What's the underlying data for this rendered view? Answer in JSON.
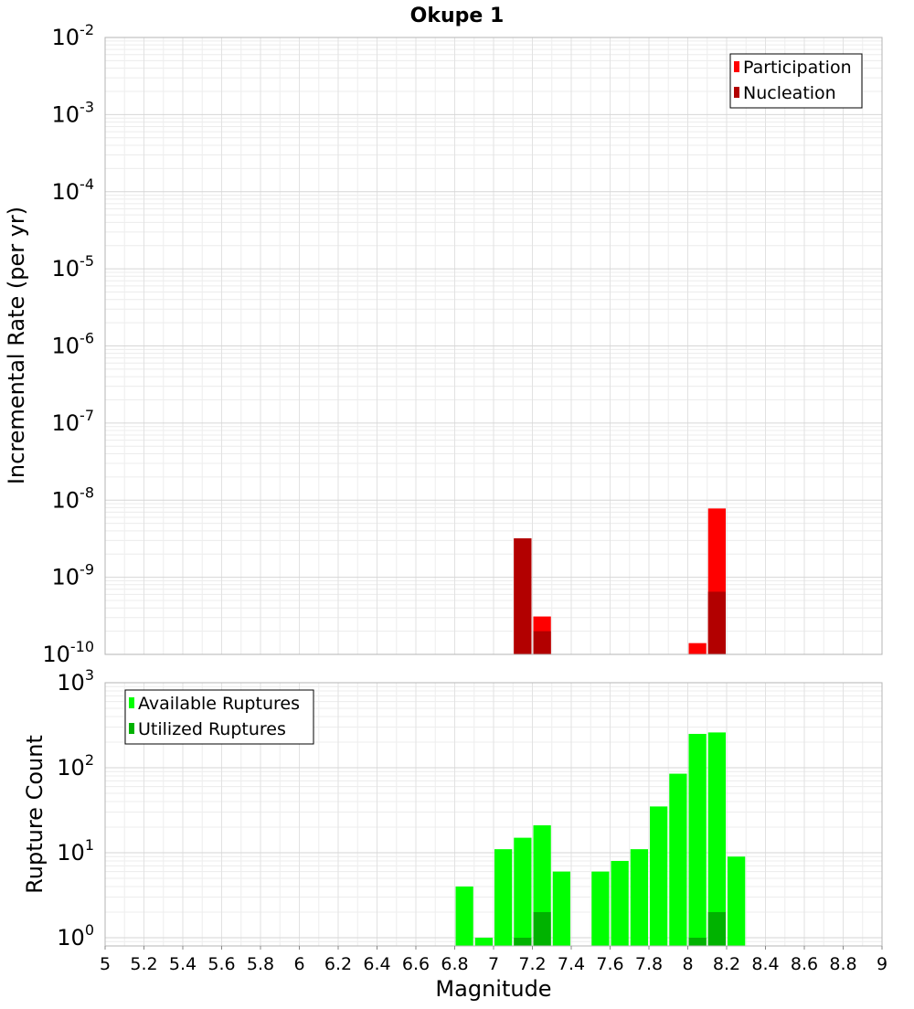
{
  "title": "Okupe 1",
  "chart_data": [
    {
      "type": "bar",
      "panel": "top",
      "ylabel": "Incremental Rate (per yr)",
      "yscale": "log",
      "ylim": [
        1e-10,
        0.01
      ],
      "xlim": [
        5,
        9
      ],
      "y_ticks": [
        {
          "base": "10",
          "exp": "-10",
          "value": 1e-10
        },
        {
          "base": "10",
          "exp": "-9",
          "value": 1e-09
        },
        {
          "base": "10",
          "exp": "-8",
          "value": 1e-08
        },
        {
          "base": "10",
          "exp": "-7",
          "value": 1e-07
        },
        {
          "base": "10",
          "exp": "-6",
          "value": 1e-06
        },
        {
          "base": "10",
          "exp": "-5",
          "value": 1e-05
        },
        {
          "base": "10",
          "exp": "-4",
          "value": 0.0001
        },
        {
          "base": "10",
          "exp": "-3",
          "value": 0.001
        },
        {
          "base": "10",
          "exp": "-2",
          "value": 0.01
        }
      ],
      "legend_position": "top-right",
      "bin_width": 0.1,
      "series": [
        {
          "name": "Participation",
          "color": "#ff0000",
          "points": [
            {
              "x": 7.15,
              "y": 3.2e-09
            },
            {
              "x": 7.25,
              "y": 3.1e-10
            },
            {
              "x": 8.05,
              "y": 1.4e-10
            },
            {
              "x": 8.15,
              "y": 7.8e-09
            }
          ]
        },
        {
          "name": "Nucleation",
          "color": "#b20000",
          "points": [
            {
              "x": 7.15,
              "y": 3.2e-09
            },
            {
              "x": 7.25,
              "y": 2e-10
            },
            {
              "x": 8.15,
              "y": 6.5e-10
            }
          ]
        }
      ]
    },
    {
      "type": "bar",
      "panel": "bottom",
      "ylabel": "Rupture Count",
      "xlabel": "Magnitude",
      "yscale": "log",
      "ylim": [
        0.8,
        1000
      ],
      "xlim": [
        5,
        9
      ],
      "y_ticks": [
        {
          "base": "10",
          "exp": "0",
          "value": 1
        },
        {
          "base": "10",
          "exp": "1",
          "value": 10
        },
        {
          "base": "10",
          "exp": "2",
          "value": 100
        },
        {
          "base": "10",
          "exp": "3",
          "value": 1000
        }
      ],
      "x_ticks": [
        "5",
        "5.2",
        "5.4",
        "5.6",
        "5.8",
        "6",
        "6.2",
        "6.4",
        "6.6",
        "6.8",
        "7",
        "7.2",
        "7.4",
        "7.6",
        "7.8",
        "8",
        "8.2",
        "8.4",
        "8.6",
        "8.8",
        "9"
      ],
      "legend_position": "top-left",
      "bin_width": 0.1,
      "series": [
        {
          "name": "Available Ruptures",
          "color": "#00ff00",
          "points": [
            {
              "x": 6.85,
              "y": 4
            },
            {
              "x": 6.95,
              "y": 1
            },
            {
              "x": 7.05,
              "y": 11
            },
            {
              "x": 7.15,
              "y": 15
            },
            {
              "x": 7.25,
              "y": 21
            },
            {
              "x": 7.35,
              "y": 6
            },
            {
              "x": 7.55,
              "y": 6
            },
            {
              "x": 7.65,
              "y": 8
            },
            {
              "x": 7.75,
              "y": 11
            },
            {
              "x": 7.85,
              "y": 35
            },
            {
              "x": 7.95,
              "y": 85
            },
            {
              "x": 8.05,
              "y": 250
            },
            {
              "x": 8.15,
              "y": 260
            },
            {
              "x": 8.25,
              "y": 9
            }
          ]
        },
        {
          "name": "Utilized Ruptures",
          "color": "#00b200",
          "points": [
            {
              "x": 7.15,
              "y": 1
            },
            {
              "x": 7.25,
              "y": 2
            },
            {
              "x": 8.05,
              "y": 1
            },
            {
              "x": 8.15,
              "y": 2
            }
          ]
        }
      ]
    }
  ]
}
